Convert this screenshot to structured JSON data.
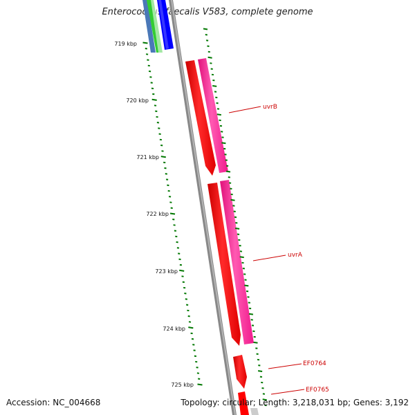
{
  "title": "Enterococcus faecalis V583, complete genome",
  "footer": {
    "accession": "Accession: NC_004668",
    "topology": "Topology: circular; Length: 3,218,031 bp; Genes: 3,192"
  },
  "scale_labels": [
    "719 kbp",
    "720 kbp",
    "721 kbp",
    "722 kbp",
    "723 kbp",
    "724 kbp",
    "725 kbp"
  ],
  "gene_labels": [
    "uvrB",
    "uvrA",
    "EF0764",
    "EF0765"
  ],
  "colors": {
    "backbone": "#8a8a8a",
    "gene_red": "#ff0000",
    "gene_magenta": "#ff1493",
    "label_red": "#cc0000",
    "tick_green": "#007700",
    "blue": "#0000ff",
    "green": "#33cc33",
    "steel_blue": "#4a78b8"
  }
}
